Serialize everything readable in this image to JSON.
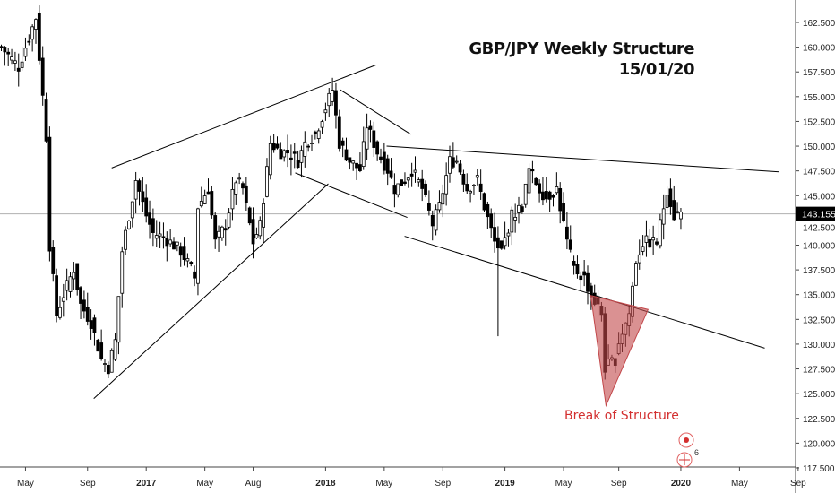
{
  "chart_data": {
    "type": "candlestick",
    "title": "GBP/JPY Weekly Structure",
    "subtitle": "15/01/20",
    "annotation": "Break of Structure",
    "start_week": "2016-03-14",
    "interval": "1W",
    "last_price": "143.155",
    "ylim": [
      117.5,
      162.5
    ],
    "y_ticks": [
      "162.500",
      "160.000",
      "157.500",
      "155.000",
      "152.500",
      "150.000",
      "147.500",
      "145.000",
      "142.500",
      "140.000",
      "137.500",
      "135.000",
      "132.500",
      "130.000",
      "127.500",
      "125.000",
      "122.500",
      "120.000",
      "117.500"
    ],
    "x_ticks": [
      {
        "label": "May",
        "week": 7,
        "bold": false
      },
      {
        "label": "Sep",
        "week": 25,
        "bold": false
      },
      {
        "label": "2017",
        "week": 42,
        "bold": true
      },
      {
        "label": "May",
        "week": 59,
        "bold": false
      },
      {
        "label": "Aug",
        "week": 73,
        "bold": false
      },
      {
        "label": "2018",
        "week": 94,
        "bold": true
      },
      {
        "label": "May",
        "week": 111,
        "bold": false
      },
      {
        "label": "Sep",
        "week": 128,
        "bold": false
      },
      {
        "label": "2019",
        "week": 146,
        "bold": true
      },
      {
        "label": "May",
        "week": 163,
        "bold": false
      },
      {
        "label": "Sep",
        "week": 179,
        "bold": false
      },
      {
        "label": "2020",
        "week": 197,
        "bold": true
      },
      {
        "label": "May",
        "week": 214,
        "bold": false
      },
      {
        "label": "Sep",
        "week": 231,
        "bold": false
      }
    ],
    "close_anchors": [
      [
        0,
        160
      ],
      [
        5,
        158
      ],
      [
        8,
        161
      ],
      [
        10,
        163
      ],
      [
        12,
        155
      ],
      [
        13,
        151
      ],
      [
        14,
        140
      ],
      [
        16,
        133
      ],
      [
        18,
        135
      ],
      [
        21,
        137.6
      ],
      [
        23,
        134
      ],
      [
        26,
        132.2
      ],
      [
        29,
        128.5
      ],
      [
        31,
        127.6
      ],
      [
        33,
        130.3
      ],
      [
        35,
        139.4
      ],
      [
        38,
        144.8
      ],
      [
        39,
        146.6
      ],
      [
        42,
        143
      ],
      [
        44,
        141.2
      ],
      [
        47,
        140.8
      ],
      [
        49,
        140.3
      ],
      [
        52,
        139.4
      ],
      [
        55,
        137.6
      ],
      [
        56,
        136.7
      ],
      [
        57,
        143.9
      ],
      [
        60,
        145.7
      ],
      [
        62,
        140.3
      ],
      [
        65,
        142
      ],
      [
        68,
        146.6
      ],
      [
        70,
        145.7
      ],
      [
        73,
        140.3
      ],
      [
        75,
        142
      ],
      [
        78,
        150.3
      ],
      [
        81,
        149.4
      ],
      [
        83,
        149.4
      ],
      [
        86,
        148.5
      ],
      [
        88,
        150.3
      ],
      [
        91,
        151.2
      ],
      [
        94,
        153.9
      ],
      [
        96,
        155.7
      ],
      [
        98,
        150.3
      ],
      [
        101,
        148.5
      ],
      [
        104,
        147.6
      ],
      [
        106,
        152.1
      ],
      [
        109,
        149.4
      ],
      [
        112,
        147.6
      ],
      [
        114,
        145.7
      ],
      [
        117,
        146.6
      ],
      [
        119,
        147.6
      ],
      [
        122,
        145.7
      ],
      [
        125,
        142.1
      ],
      [
        127,
        143.9
      ],
      [
        130,
        148.5
      ],
      [
        132,
        148.5
      ],
      [
        135,
        145.7
      ],
      [
        138,
        146.6
      ],
      [
        140,
        143.9
      ],
      [
        143,
        140.3
      ],
      [
        145,
        139.4
      ],
      [
        148,
        143
      ],
      [
        151,
        143.9
      ],
      [
        153,
        147.6
      ],
      [
        156,
        145.7
      ],
      [
        158,
        144.8
      ],
      [
        161,
        145.7
      ],
      [
        164,
        140.3
      ],
      [
        166,
        137.6
      ],
      [
        169,
        136.7
      ],
      [
        171,
        134.9
      ],
      [
        174,
        133.1
      ],
      [
        175,
        127.6
      ],
      [
        178,
        128.5
      ],
      [
        179,
        130.3
      ],
      [
        182,
        133.1
      ],
      [
        184,
        138.5
      ],
      [
        186,
        140.3
      ],
      [
        187,
        140.3
      ],
      [
        190,
        140.3
      ],
      [
        192,
        143.9
      ],
      [
        193,
        145.7
      ],
      [
        195,
        143
      ],
      [
        197,
        143.2
      ]
    ],
    "special_lows": [
      [
        144,
        130.8
      ]
    ],
    "trendlines": [
      [
        [
          32,
          147.8
        ],
        [
          108.6,
          158.2
        ]
      ],
      [
        [
          26.8,
          124.5
        ],
        [
          94.8,
          146.2
        ]
      ],
      [
        [
          98.2,
          155.7
        ],
        [
          118.7,
          151.2
        ]
      ],
      [
        [
          85.2,
          147.3
        ],
        [
          117.7,
          142.8
        ]
      ],
      [
        [
          111.7,
          150
        ],
        [
          225.5,
          147.4
        ]
      ],
      [
        [
          116.9,
          140.9
        ],
        [
          221.3,
          129.6
        ]
      ]
    ],
    "break_triangle": [
      [
        170.9,
        134.9
      ],
      [
        175.3,
        123.8
      ],
      [
        187.5,
        133.5
      ]
    ],
    "colors": {
      "up": "#ffffff",
      "down": "#000000",
      "outline": "#000000",
      "annotation": "#d32f2f",
      "triangle": "#c2474a"
    }
  },
  "events_badge": "6"
}
